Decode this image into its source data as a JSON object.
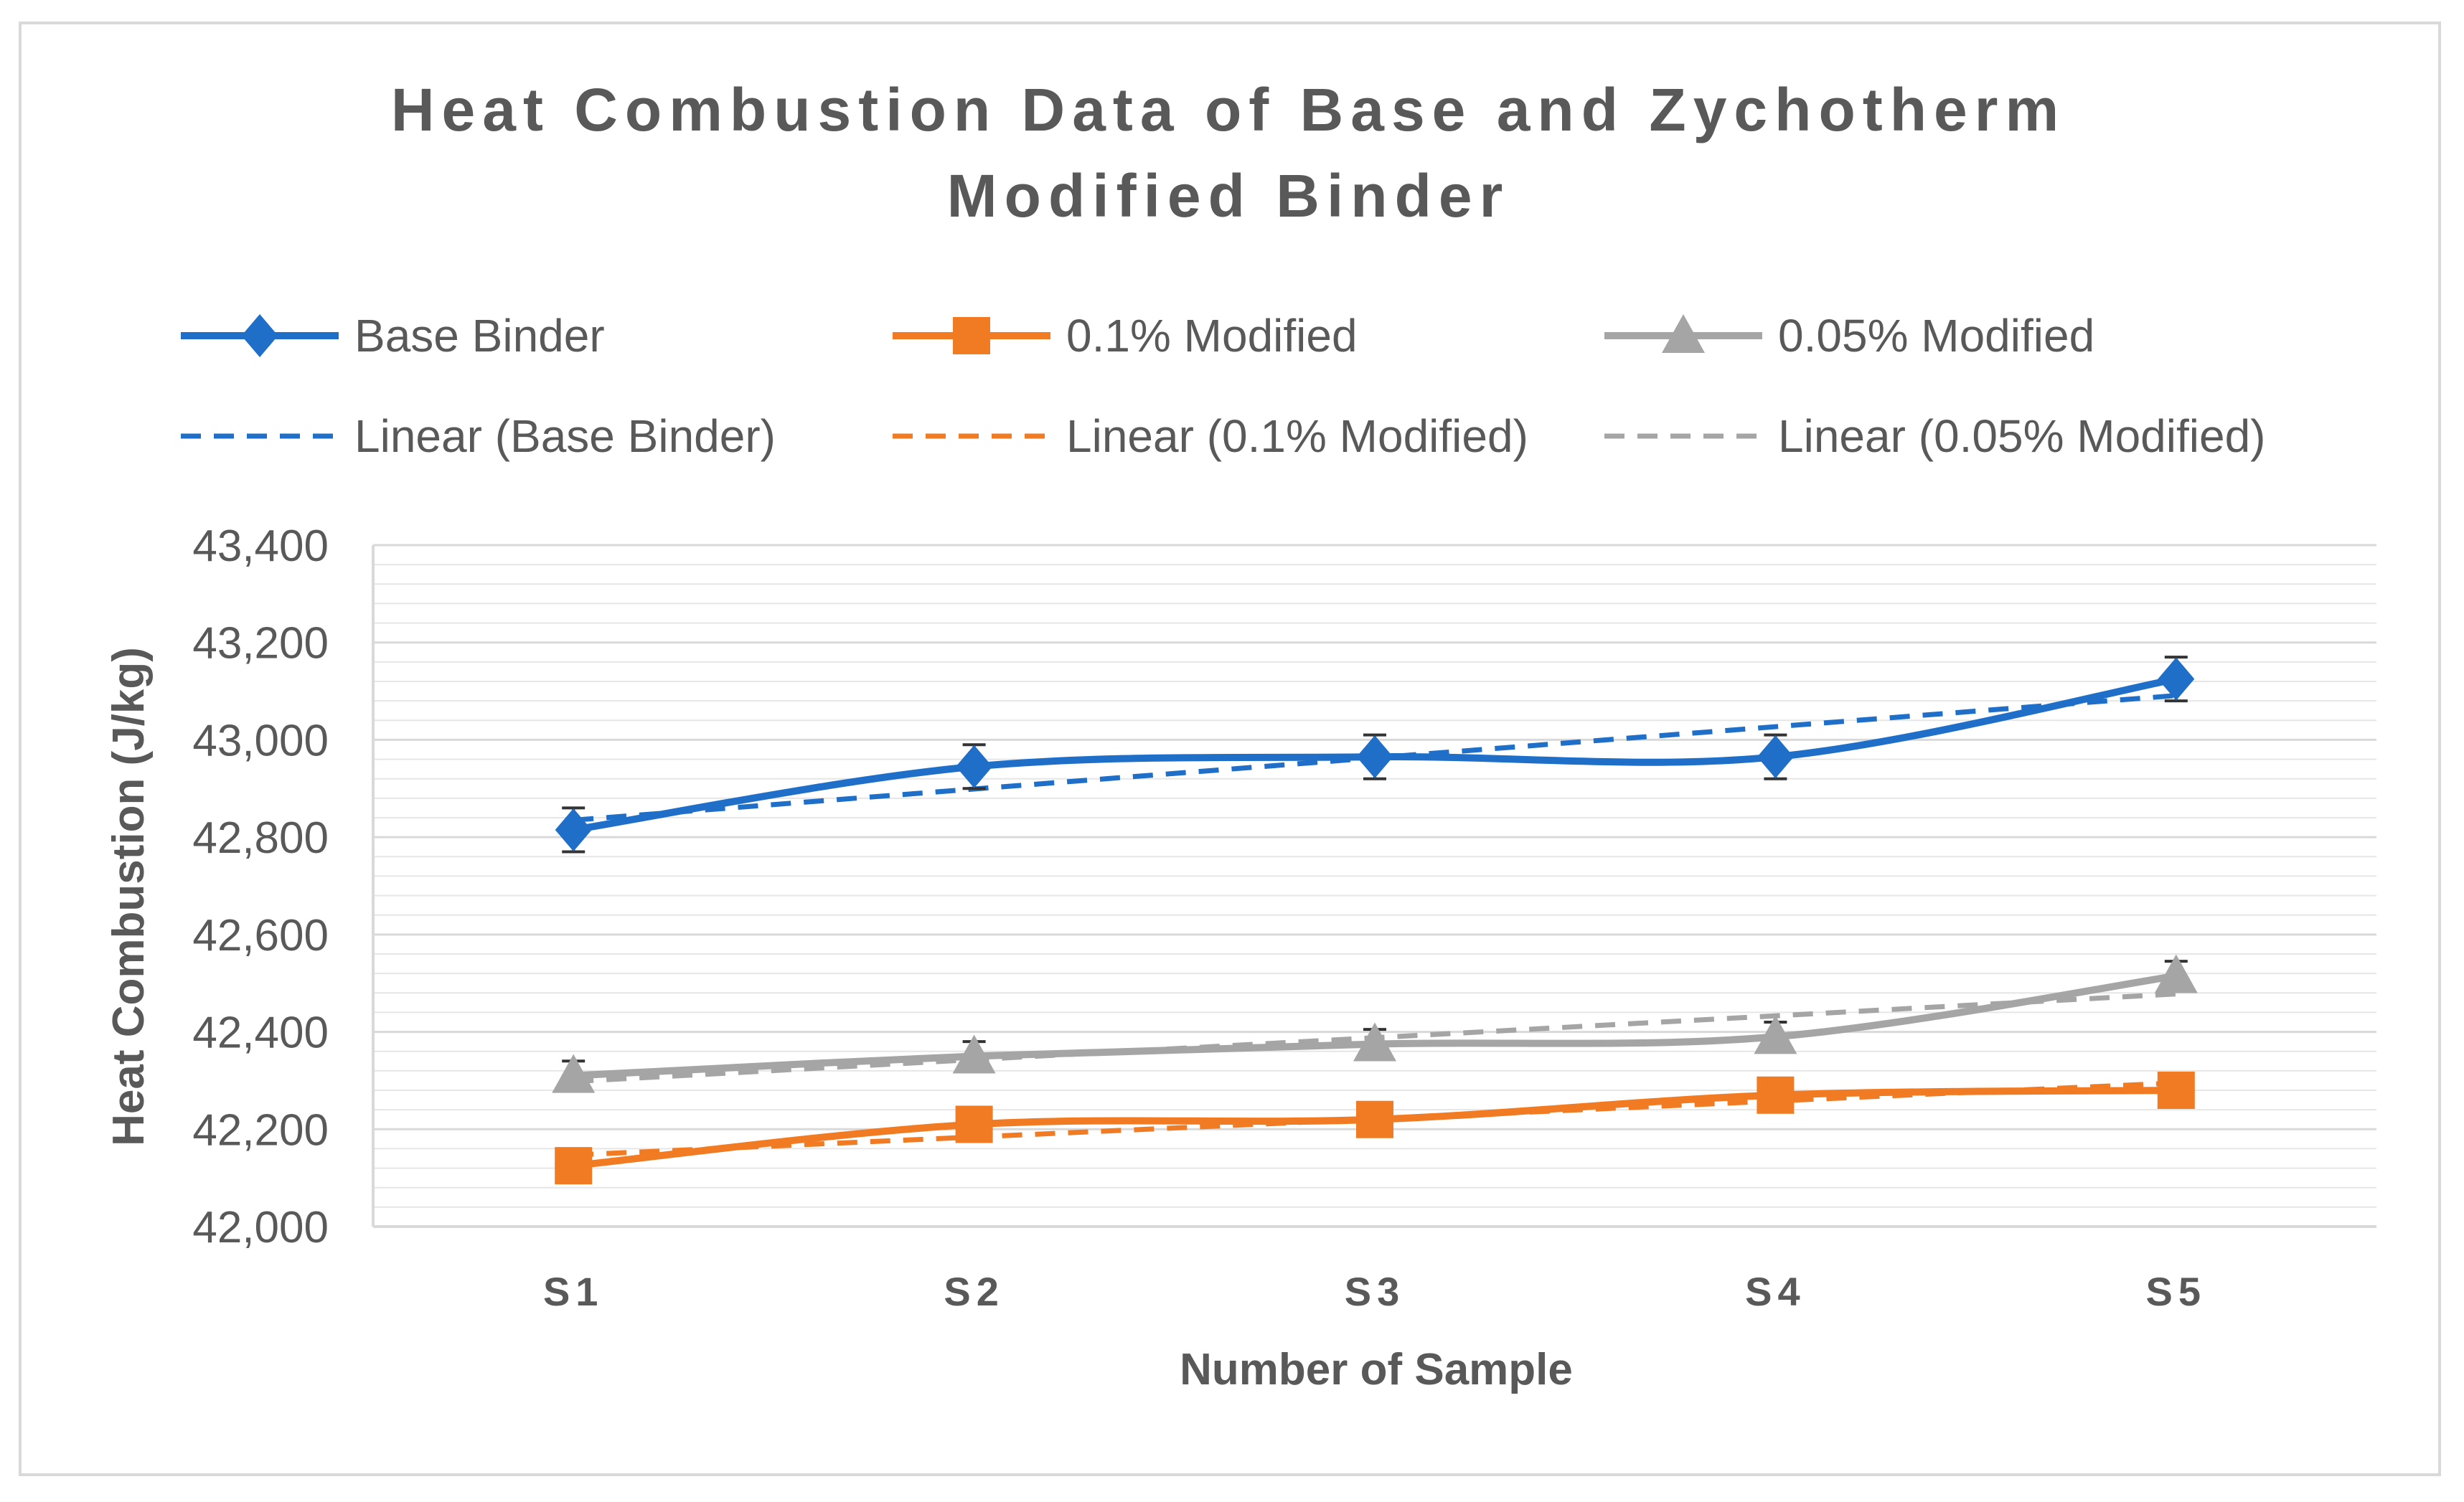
{
  "chart_data": {
    "type": "line",
    "title_line1": "Heat Combustion Data of Base and Zychotherm",
    "title_line2": "Modified Binder",
    "xlabel": "Number of Sample",
    "ylabel": "Heat Combustion (J/kg)",
    "categories": [
      "S1",
      "S2",
      "S3",
      "S4",
      "S5"
    ],
    "ylim": [
      42000,
      43400
    ],
    "ytick_step": 200,
    "minor_grid_step": 40,
    "yticks": [
      "42,000",
      "42,200",
      "42,400",
      "42,600",
      "42,800",
      "43,000",
      "43,200",
      "43,400"
    ],
    "series": [
      {
        "name": "Base Binder",
        "color": "#1f6fc9",
        "marker": "diamond",
        "values": [
          42815,
          42945,
          42965,
          42965,
          43125
        ],
        "error": 45,
        "trend_name": "Linear (Base Binder)"
      },
      {
        "name": "0.1% Modified",
        "color": "#f07b23",
        "marker": "square",
        "values": [
          42125,
          42210,
          42220,
          42270,
          42280
        ],
        "error": 0,
        "trend_name": "Linear (0.1% Modified)"
      },
      {
        "name": "0.05% Modified",
        "color": "#a5a5a5",
        "marker": "triangle",
        "values": [
          42310,
          42350,
          42375,
          42390,
          42515
        ],
        "error": 30,
        "trend_name": "Linear (0.05% Modified)"
      }
    ],
    "legend_position": "top",
    "axis_color": "#d9d9d9",
    "grid_color": "#e6e6e6"
  }
}
